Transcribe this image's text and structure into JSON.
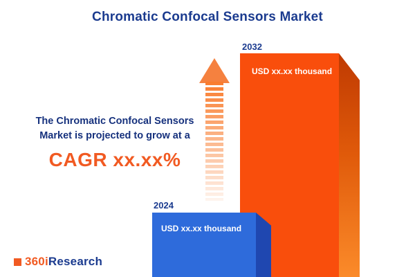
{
  "title": "Chromatic Confocal Sensors Market",
  "annotation": {
    "line1": "The Chromatic Confocal Sensors",
    "line2": "Market is projected to grow at a",
    "cagr": "CAGR xx.xx%"
  },
  "bars": {
    "b2024": {
      "year": "2024",
      "value": "USD xx.xx thousand"
    },
    "b2032": {
      "year": "2032",
      "value": "USD xx.xx thousand"
    }
  },
  "logo": {
    "prefix": "360i",
    "suffix": "Research"
  },
  "colors": {
    "navy": "#1b3b8f",
    "accent_orange": "#f15a22",
    "bar_blue_front": "#2e6bdb",
    "bar_blue_side": "#1f47b0",
    "bar_orange_front": "#f94e0c",
    "bar_orange_side_dark": "#bf3a02",
    "bar_orange_side_light": "#fb8b2a",
    "background": "#ffffff"
  },
  "chart_data": {
    "type": "bar",
    "categories": [
      "2024",
      "2032"
    ],
    "values": [
      null,
      null
    ],
    "value_labels": [
      "USD xx.xx thousand",
      "USD xx.xx thousand"
    ],
    "relative_heights": [
      0.29,
      1.0
    ],
    "bar_colors": [
      "#2e6bdb",
      "#f94e0c"
    ],
    "title": "Chromatic Confocal Sensors Market",
    "xlabel": "",
    "ylabel": "",
    "legend": "none",
    "grid": false,
    "annotations": [
      "The Chromatic Confocal Sensors Market is projected to grow at a CAGR xx.xx%"
    ]
  }
}
